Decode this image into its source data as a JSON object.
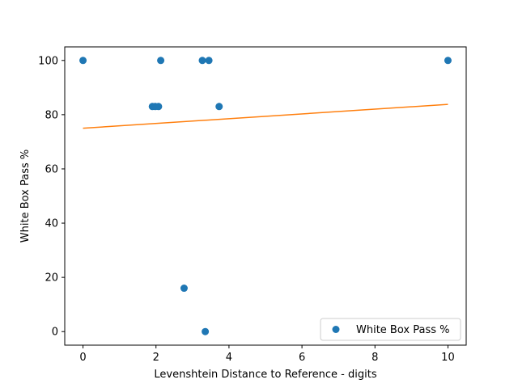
{
  "chart_data": {
    "type": "scatter",
    "title": "",
    "xlabel": "Levenshtein Distance to Reference - digits",
    "ylabel": "White Box Pass %",
    "xlim": [
      -0.5,
      10.5
    ],
    "ylim": [
      -5,
      105
    ],
    "xticks": [
      0,
      2,
      4,
      6,
      8,
      10
    ],
    "yticks": [
      0,
      20,
      40,
      60,
      80,
      100
    ],
    "grid": false,
    "legend_position": "lower-right",
    "series": [
      {
        "name": "White Box Pass %",
        "kind": "points",
        "color": "#1f77b4",
        "points": [
          {
            "x": 0,
            "y": 100
          },
          {
            "x": 2.13,
            "y": 100
          },
          {
            "x": 3.27,
            "y": 100
          },
          {
            "x": 3.45,
            "y": 100
          },
          {
            "x": 10,
            "y": 100
          },
          {
            "x": 1.9,
            "y": 83
          },
          {
            "x": 1.98,
            "y": 83
          },
          {
            "x": 2.07,
            "y": 83
          },
          {
            "x": 3.73,
            "y": 83
          },
          {
            "x": 2.77,
            "y": 16
          },
          {
            "x": 3.35,
            "y": 0
          }
        ]
      },
      {
        "kind": "trend-line",
        "color": "#ff7f0e",
        "points": [
          {
            "x": 0,
            "y": 75
          },
          {
            "x": 10,
            "y": 83.8
          }
        ]
      }
    ]
  }
}
